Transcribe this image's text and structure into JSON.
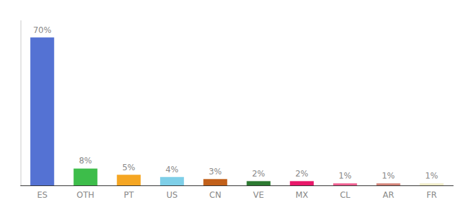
{
  "chart_data": {
    "type": "bar",
    "categories": [
      "ES",
      "OTH",
      "PT",
      "US",
      "CN",
      "VE",
      "MX",
      "CL",
      "AR",
      "FR"
    ],
    "values": [
      70,
      8,
      5,
      4,
      3,
      2,
      2,
      1,
      1,
      1
    ],
    "value_labels": [
      "70%",
      "8%",
      "5%",
      "4%",
      "3%",
      "2%",
      "2%",
      "1%",
      "1%",
      "1%"
    ],
    "colors": [
      "#5472D3",
      "#3DBD4A",
      "#F5A623",
      "#7ECFE8",
      "#C1601A",
      "#2D7A32",
      "#E8186A",
      "#F06292",
      "#D4857A",
      "#F0ECC8"
    ],
    "ylim": [
      0,
      78
    ],
    "data_labels": true,
    "tick_labels": "x",
    "grid": false
  }
}
